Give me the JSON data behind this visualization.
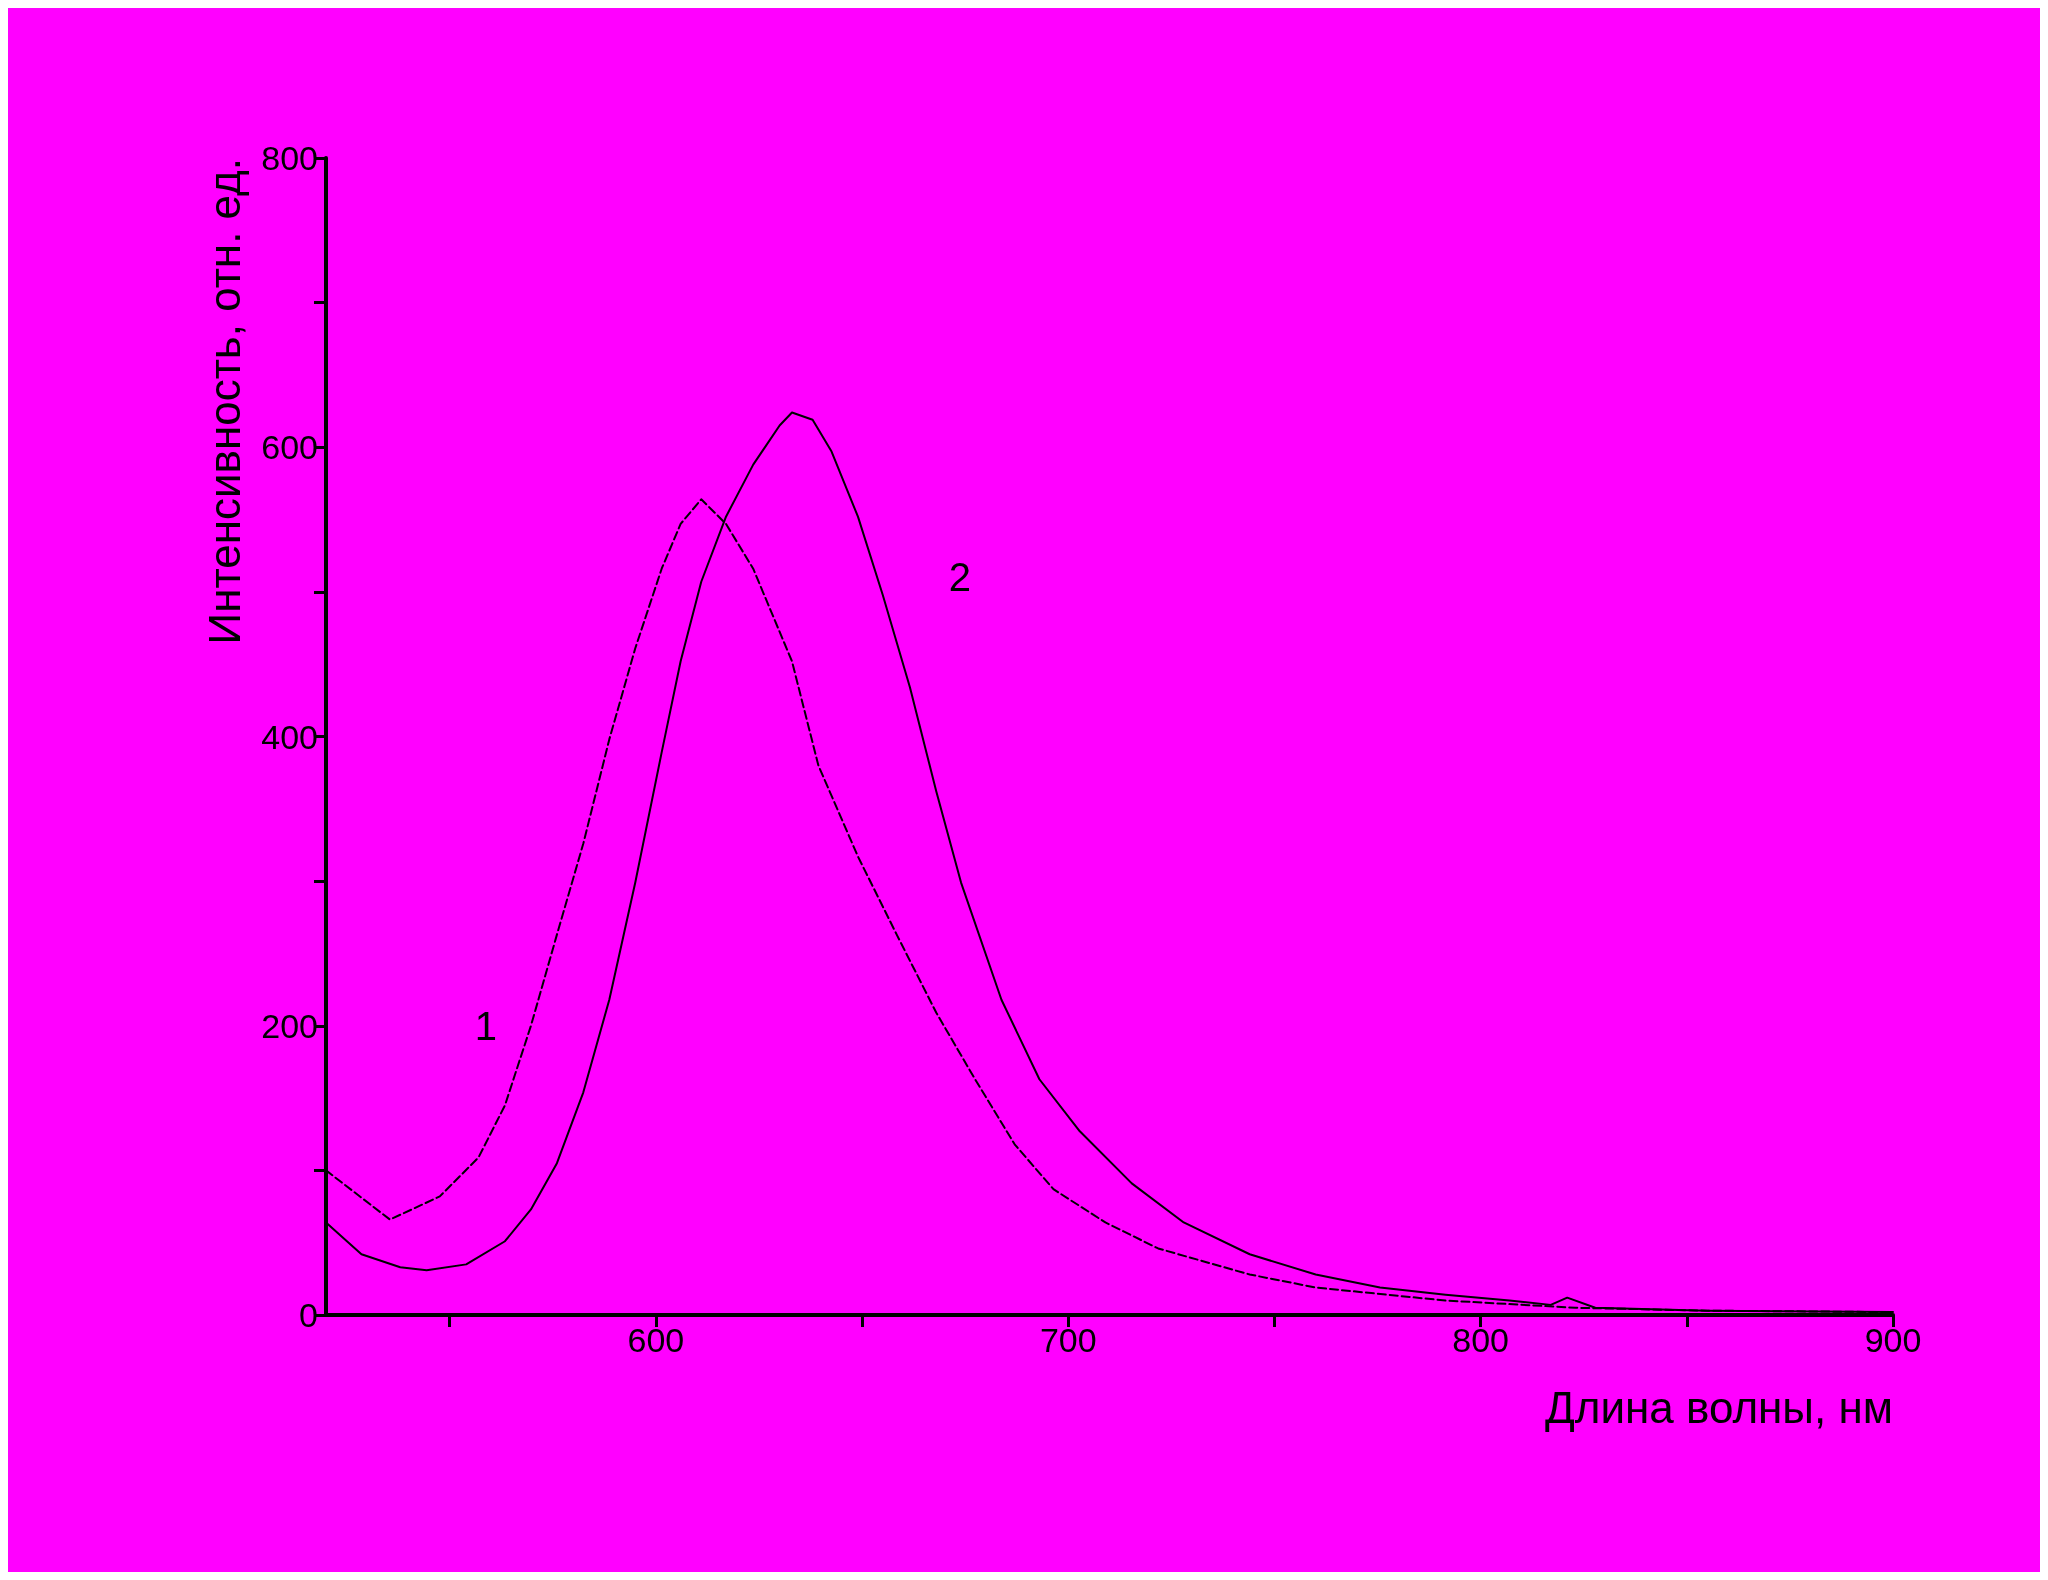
{
  "chart_data": {
    "type": "line",
    "xlabel": "Длина волны, нм",
    "ylabel": "Интенсивность, отн. ед.",
    "xlim": [
      520,
      900
    ],
    "ylim": [
      0,
      800
    ],
    "xticks": [
      {
        "value": 550,
        "label": null
      },
      600,
      {
        "value": 650,
        "label": null
      },
      700,
      {
        "value": 750,
        "label": null
      },
      800,
      {
        "value": 850,
        "label": null
      },
      900
    ],
    "yticks": [
      0,
      {
        "value": 100,
        "label": null
      },
      200,
      {
        "value": 300,
        "label": null
      },
      400,
      {
        "value": 500,
        "label": null
      },
      600,
      {
        "value": 700,
        "label": null
      },
      800
    ],
    "grid": false,
    "marker": "none",
    "series": [
      {
        "name": "1",
        "color": "#000000",
        "line_style": "dashed",
        "x": [
          520,
          535.5,
          547.6,
          557,
          563.4,
          569.7,
          576,
          582.4,
          588.7,
          595,
          601.4,
          606,
          611,
          617,
          623.6,
          633,
          639.4,
          649,
          658.4,
          668,
          677.4,
          687,
          696.4,
          709,
          721.8,
          744,
          760,
          791.5,
          823,
          855,
          900
        ],
        "values": [
          100,
          66,
          82,
          109,
          145,
          200,
          263,
          326,
          398,
          461,
          516,
          547,
          564,
          547,
          516,
          452,
          380,
          317,
          263,
          209,
          163,
          118,
          87,
          64,
          46,
          28,
          19,
          10,
          5,
          3,
          2
        ]
      },
      {
        "name": "2",
        "color": "#000000",
        "line_style": "solid",
        "x": [
          520,
          528.6,
          538,
          544.4,
          554,
          563.4,
          569.7,
          576,
          582.4,
          588.7,
          595,
          601.4,
          606,
          611,
          617,
          623.6,
          630,
          633,
          638,
          642.6,
          649,
          655,
          661.6,
          668,
          674,
          683.8,
          693,
          702.8,
          715.4,
          728,
          744,
          760,
          775.6,
          791.5,
          807,
          817,
          821,
          827.8,
          855,
          900
        ],
        "values": [
          64,
          42,
          33,
          31,
          35,
          51,
          73,
          105,
          154,
          218,
          299,
          389,
          452,
          507,
          552,
          588,
          615,
          624,
          619,
          597,
          552,
          498,
          434,
          362,
          299,
          218,
          163,
          127,
          91,
          64,
          42,
          28,
          19,
          14,
          10,
          7,
          12,
          5,
          3,
          2
        ]
      }
    ]
  }
}
